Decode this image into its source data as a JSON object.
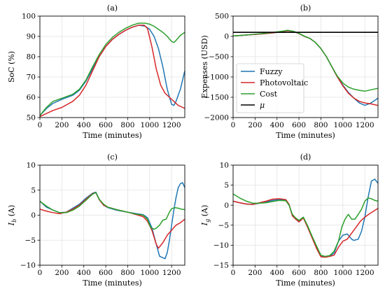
{
  "colors": {
    "fuzzy": "#1f77b4",
    "photovoltaic": "#d62728",
    "cost": "#2ca02c",
    "mu": "#000000",
    "grid": "#e3e3e3"
  },
  "chart_data": [
    {
      "type": "line",
      "title": "(a)",
      "xlabel": "Time (minutes)",
      "ylabel": "SoC (%)",
      "xlim": [
        0,
        1320
      ],
      "ylim": [
        50,
        100
      ],
      "xticks": [
        "0",
        "200",
        "400",
        "600",
        "800",
        "1000",
        "1200"
      ],
      "xtick_values": [
        0,
        200,
        400,
        600,
        800,
        1000,
        1200
      ],
      "yticks": [
        "50",
        "60",
        "70",
        "80",
        "90",
        "100"
      ],
      "ytick_values": [
        50,
        60,
        70,
        80,
        90,
        100
      ],
      "grid": true,
      "series": [
        {
          "name": "Fuzzy",
          "color": "#1f77b4",
          "x": [
            0,
            60,
            120,
            200,
            300,
            360,
            420,
            480,
            540,
            600,
            660,
            720,
            780,
            840,
            900,
            960,
            1000,
            1040,
            1080,
            1120,
            1160,
            1200,
            1220,
            1240,
            1280,
            1320
          ],
          "y": [
            51,
            54.5,
            57,
            59,
            61,
            63.5,
            68,
            74,
            80,
            85,
            88.5,
            91,
            93,
            94.5,
            95.5,
            95,
            93.5,
            90,
            84,
            75,
            64,
            56.5,
            56,
            58,
            64,
            73
          ]
        },
        {
          "name": "Photovoltaic",
          "color": "#d62728",
          "x": [
            0,
            60,
            120,
            200,
            300,
            360,
            420,
            480,
            540,
            600,
            660,
            720,
            780,
            840,
            900,
            950,
            980,
            1020,
            1060,
            1100,
            1140,
            1180,
            1220,
            1260,
            1300,
            1320
          ],
          "y": [
            50.5,
            52,
            53.5,
            55,
            58,
            61,
            66,
            73,
            80,
            85,
            88.5,
            91,
            93,
            94.5,
            95.5,
            95.5,
            94,
            85,
            74,
            66,
            62,
            60,
            58,
            56,
            55,
            54.5
          ]
        },
        {
          "name": "Cost",
          "color": "#2ca02c",
          "x": [
            0,
            60,
            120,
            200,
            300,
            360,
            420,
            480,
            540,
            600,
            660,
            720,
            780,
            840,
            900,
            960,
            1000,
            1040,
            1080,
            1120,
            1160,
            1200,
            1220,
            1240,
            1280,
            1320
          ],
          "y": [
            51,
            55,
            58,
            59.5,
            61.5,
            64,
            68.5,
            75,
            81,
            86,
            89.5,
            92,
            94,
            95.5,
            96.5,
            96.5,
            96,
            95,
            93.5,
            92,
            90,
            87.5,
            87,
            88,
            90.5,
            92
          ]
        }
      ]
    },
    {
      "type": "line",
      "title": "(b)",
      "xlabel": "Time (minutes)",
      "ylabel": "Expenses (USD)",
      "xlim": [
        0,
        1320
      ],
      "ylim": [
        -2000,
        500
      ],
      "xticks": [
        "0",
        "200",
        "400",
        "600",
        "800",
        "1000",
        "1200"
      ],
      "xtick_values": [
        0,
        200,
        400,
        600,
        800,
        1000,
        1200
      ],
      "yticks": [
        "500",
        "0",
        "−500",
        "−1000",
        "−1500",
        "−2000"
      ],
      "ytick_values": [
        500,
        0,
        -500,
        -1000,
        -1500,
        -2000
      ],
      "grid": true,
      "legend": {
        "placement": "lower-left",
        "entries": [
          "Fuzzy",
          "Photovoltaic",
          "Cost",
          "μ"
        ]
      },
      "series": [
        {
          "name": "Fuzzy",
          "color": "#1f77b4",
          "x": [
            0,
            100,
            200,
            300,
            400,
            450,
            500,
            550,
            600,
            650,
            700,
            750,
            800,
            850,
            900,
            950,
            1000,
            1050,
            1100,
            1150,
            1200,
            1250,
            1300,
            1320
          ],
          "y": [
            10,
            30,
            50,
            70,
            100,
            120,
            140,
            120,
            70,
            0,
            -50,
            -150,
            -300,
            -500,
            -750,
            -1000,
            -1200,
            -1380,
            -1520,
            -1640,
            -1700,
            -1650,
            -1560,
            -1520
          ]
        },
        {
          "name": "Photovoltaic",
          "color": "#d62728",
          "x": [
            0,
            100,
            200,
            300,
            400,
            450,
            500,
            550,
            600,
            650,
            700,
            750,
            800,
            850,
            900,
            950,
            1000,
            1050,
            1100,
            1150,
            1200,
            1250,
            1300,
            1320
          ],
          "y": [
            10,
            30,
            50,
            70,
            100,
            120,
            140,
            120,
            70,
            0,
            -50,
            -150,
            -300,
            -500,
            -750,
            -1000,
            -1220,
            -1400,
            -1520,
            -1600,
            -1640,
            -1660,
            -1690,
            -1700
          ]
        },
        {
          "name": "Cost",
          "color": "#2ca02c",
          "x": [
            0,
            100,
            200,
            300,
            400,
            450,
            500,
            550,
            600,
            650,
            700,
            750,
            800,
            850,
            900,
            950,
            1000,
            1050,
            1100,
            1150,
            1200,
            1250,
            1300,
            1320
          ],
          "y": [
            10,
            30,
            55,
            80,
            110,
            130,
            150,
            125,
            75,
            5,
            -50,
            -150,
            -300,
            -500,
            -750,
            -980,
            -1150,
            -1250,
            -1300,
            -1330,
            -1350,
            -1320,
            -1290,
            -1280
          ]
        },
        {
          "name": "μ",
          "color": "#000000",
          "x": [
            0,
            1320
          ],
          "y": [
            100,
            100
          ]
        }
      ]
    },
    {
      "type": "line",
      "title": "(c)",
      "xlabel": "Time (minutes)",
      "ylabel": "I",
      "ylabel_sub": "b",
      "ylabel_unit": " (A)",
      "xlim": [
        0,
        1320
      ],
      "ylim": [
        -10,
        10
      ],
      "xticks": [
        "0",
        "200",
        "400",
        "600",
        "800",
        "1000",
        "1200"
      ],
      "xtick_values": [
        0,
        200,
        400,
        600,
        800,
        1000,
        1200
      ],
      "yticks": [
        "10",
        "5",
        "0",
        "−5",
        "−10"
      ],
      "ytick_values": [
        10,
        5,
        0,
        -5,
        -10
      ],
      "grid": true,
      "series": [
        {
          "name": "Fuzzy",
          "color": "#1f77b4",
          "x": [
            0,
            60,
            120,
            180,
            240,
            300,
            360,
            420,
            480,
            510,
            540,
            580,
            620,
            700,
            800,
            880,
            940,
            980,
            1020,
            1060,
            1090,
            1120,
            1140,
            1160,
            1180,
            1200,
            1220,
            1240,
            1260,
            1280,
            1300,
            1320
          ],
          "y": [
            2.8,
            1.6,
            1.0,
            0.5,
            0.6,
            1.4,
            2.2,
            3.4,
            4.4,
            4.6,
            3.2,
            2.0,
            1.5,
            1.0,
            0.6,
            0.3,
            0.1,
            -0.5,
            -2.5,
            -5.8,
            -8.2,
            -8.5,
            -8.7,
            -7.5,
            -5.0,
            -2.0,
            1.0,
            3.5,
            5.5,
            6.3,
            6.5,
            5.5
          ]
        },
        {
          "name": "Photovoltaic",
          "color": "#d62728",
          "x": [
            0,
            60,
            120,
            180,
            240,
            300,
            360,
            420,
            480,
            510,
            540,
            580,
            620,
            700,
            800,
            880,
            940,
            980,
            1020,
            1060,
            1080,
            1120,
            1160,
            1200,
            1240,
            1280,
            1320
          ],
          "y": [
            1.2,
            0.8,
            0.5,
            0.3,
            0.6,
            1.2,
            2.0,
            3.2,
            4.3,
            4.5,
            3.1,
            2.0,
            1.6,
            1.1,
            0.6,
            0.1,
            -0.3,
            -1.2,
            -3.0,
            -5.8,
            -6.6,
            -5.5,
            -4.0,
            -3.0,
            -2.0,
            -1.5,
            -0.8
          ]
        },
        {
          "name": "Cost",
          "color": "#2ca02c",
          "x": [
            0,
            60,
            120,
            180,
            240,
            300,
            360,
            420,
            480,
            510,
            540,
            580,
            620,
            700,
            800,
            880,
            940,
            980,
            1010,
            1040,
            1060,
            1090,
            1120,
            1150,
            1180,
            1200,
            1230,
            1260,
            1290,
            1320
          ],
          "y": [
            2.8,
            1.8,
            1.0,
            0.5,
            0.5,
            1.0,
            1.8,
            3.0,
            4.2,
            4.5,
            3.2,
            2.2,
            1.6,
            1.1,
            0.6,
            0.2,
            0.0,
            -0.8,
            -2.5,
            -2.8,
            -2.6,
            -2.0,
            -1.0,
            -0.8,
            0.6,
            1.3,
            1.5,
            1.4,
            1.2,
            1.1
          ]
        }
      ]
    },
    {
      "type": "line",
      "title": "(d)",
      "xlabel": "Time (minutes)",
      "ylabel": "I",
      "ylabel_sub": "g",
      "ylabel_unit": " (A)",
      "xlim": [
        0,
        1320
      ],
      "ylim": [
        -15,
        10
      ],
      "xticks": [
        "0",
        "200",
        "400",
        "600",
        "800",
        "1000",
        "1200"
      ],
      "xtick_values": [
        0,
        200,
        400,
        600,
        800,
        1000,
        1200
      ],
      "yticks": [
        "10",
        "5",
        "0",
        "−5",
        "−10",
        "−15"
      ],
      "ytick_values": [
        10,
        5,
        0,
        -5,
        -10,
        -15
      ],
      "grid": true,
      "series": [
        {
          "name": "Fuzzy",
          "color": "#1f77b4",
          "x": [
            0,
            60,
            120,
            180,
            240,
            300,
            360,
            420,
            480,
            510,
            540,
            570,
            600,
            640,
            680,
            720,
            760,
            800,
            840,
            880,
            920,
            960,
            1000,
            1040,
            1080,
            1100,
            1140,
            1170,
            1200,
            1230,
            1260,
            1290,
            1320
          ],
          "y": [
            1.0,
            0.6,
            0.3,
            0.2,
            0.5,
            0.8,
            1.2,
            1.4,
            1.2,
            0.0,
            -2.5,
            -3.5,
            -4.0,
            -3.0,
            -5.5,
            -8.0,
            -10.5,
            -12.8,
            -13.0,
            -12.7,
            -12.0,
            -9.0,
            -7.5,
            -7.2,
            -8.5,
            -8.8,
            -8.5,
            -6.5,
            -3.0,
            2.0,
            6.0,
            6.5,
            5.5
          ]
        },
        {
          "name": "Photovoltaic",
          "color": "#d62728",
          "x": [
            0,
            60,
            120,
            180,
            240,
            300,
            360,
            420,
            480,
            510,
            540,
            570,
            600,
            640,
            680,
            720,
            760,
            800,
            840,
            880,
            920,
            960,
            1000,
            1040,
            1080,
            1120,
            1160,
            1200,
            1240,
            1280,
            1320
          ],
          "y": [
            1.0,
            0.6,
            0.3,
            0.2,
            0.6,
            1.0,
            1.5,
            1.6,
            1.4,
            0.2,
            -2.7,
            -3.5,
            -4.2,
            -3.2,
            -5.6,
            -8.2,
            -10.8,
            -12.9,
            -13.0,
            -12.8,
            -12.5,
            -10.5,
            -9.0,
            -8.5,
            -7.0,
            -5.5,
            -4.0,
            -3.0,
            -2.2,
            -1.5,
            -0.8
          ]
        },
        {
          "name": "Cost",
          "color": "#2ca02c",
          "x": [
            0,
            60,
            120,
            180,
            240,
            300,
            360,
            420,
            480,
            510,
            540,
            570,
            600,
            640,
            680,
            720,
            760,
            800,
            840,
            880,
            920,
            960,
            990,
            1020,
            1050,
            1080,
            1110,
            1140,
            1170,
            1200,
            1230,
            1260,
            1290,
            1320
          ],
          "y": [
            2.8,
            1.8,
            1.0,
            0.5,
            0.5,
            0.6,
            0.9,
            1.2,
            1.1,
            0.0,
            -2.3,
            -3.2,
            -3.8,
            -3.0,
            -5.2,
            -7.8,
            -10.2,
            -12.5,
            -12.8,
            -12.6,
            -11.5,
            -9.0,
            -5.5,
            -3.5,
            -2.3,
            -3.5,
            -3.5,
            -2.3,
            -1.0,
            1.0,
            1.8,
            1.6,
            1.2,
            1.0
          ]
        }
      ]
    }
  ]
}
